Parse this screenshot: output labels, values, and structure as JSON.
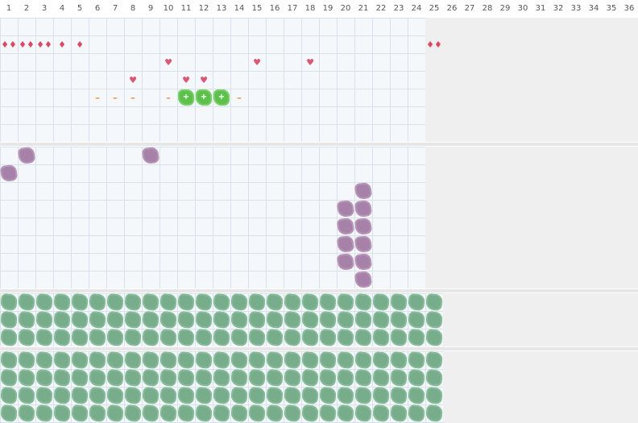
{
  "columns": [
    "1",
    "2",
    "3",
    "4",
    "5",
    "6",
    "7",
    "8",
    "9",
    "10",
    "11",
    "12",
    "13",
    "14",
    "15",
    "16",
    "17",
    "18",
    "19",
    "20",
    "21",
    "22",
    "23",
    "24",
    "25",
    "26",
    "27",
    "28",
    "29",
    "30",
    "31",
    "32",
    "33",
    "34",
    "35",
    "36"
  ],
  "palette": {
    "grid_line": "#d8e2ec",
    "panel_bg": "#f4f8fb",
    "disabled_bg": "#efefef",
    "drop_red": "#e0475f",
    "heart_pink": "#e05573",
    "dash_orange": "#f08a3a",
    "blob_purple": "#a782a8",
    "blob_green": "#77ad8a",
    "blob_lime": "#5cc04a"
  },
  "section1": {
    "active_cols": 24,
    "drops": [
      {
        "col": 1,
        "row": 2,
        "glyph": "♦♦"
      },
      {
        "col": 2,
        "row": 2,
        "glyph": "♦♦"
      },
      {
        "col": 3,
        "row": 2,
        "glyph": "♦♦"
      },
      {
        "col": 4,
        "row": 2,
        "glyph": "♦"
      },
      {
        "col": 5,
        "row": 2,
        "glyph": "♦"
      },
      {
        "col": 25,
        "row": 2,
        "glyph": "♦♦"
      }
    ],
    "hearts": [
      {
        "col": 8,
        "row": 4
      },
      {
        "col": 10,
        "row": 3
      },
      {
        "col": 11,
        "row": 4
      },
      {
        "col": 12,
        "row": 4
      },
      {
        "col": 15,
        "row": 3
      },
      {
        "col": 18,
        "row": 3
      }
    ],
    "dashes": [
      {
        "col": 6,
        "row": 5
      },
      {
        "col": 7,
        "row": 5
      },
      {
        "col": 8,
        "row": 5
      },
      {
        "col": 10,
        "row": 5
      },
      {
        "col": 14,
        "row": 5
      }
    ],
    "lime_blobs": [
      {
        "col": 11,
        "row": 5
      },
      {
        "col": 12,
        "row": 5
      },
      {
        "col": 13,
        "row": 5
      }
    ]
  },
  "section2": {
    "active_cols": 24,
    "purple_blobs": [
      {
        "col": 2,
        "row": 1
      },
      {
        "col": 9,
        "row": 1
      },
      {
        "col": 1,
        "row": 2
      },
      {
        "col": 21,
        "row": 3
      },
      {
        "col": 20,
        "row": 4
      },
      {
        "col": 21,
        "row": 4
      },
      {
        "col": 20,
        "row": 5
      },
      {
        "col": 21,
        "row": 5
      },
      {
        "col": 20,
        "row": 6
      },
      {
        "col": 21,
        "row": 6
      },
      {
        "col": 20,
        "row": 7
      },
      {
        "col": 21,
        "row": 7
      },
      {
        "col": 21,
        "row": 8
      }
    ]
  },
  "section3": {
    "active_cols": 25,
    "rows": 3
  },
  "section4": {
    "active_cols": 25,
    "rows": 4
  }
}
